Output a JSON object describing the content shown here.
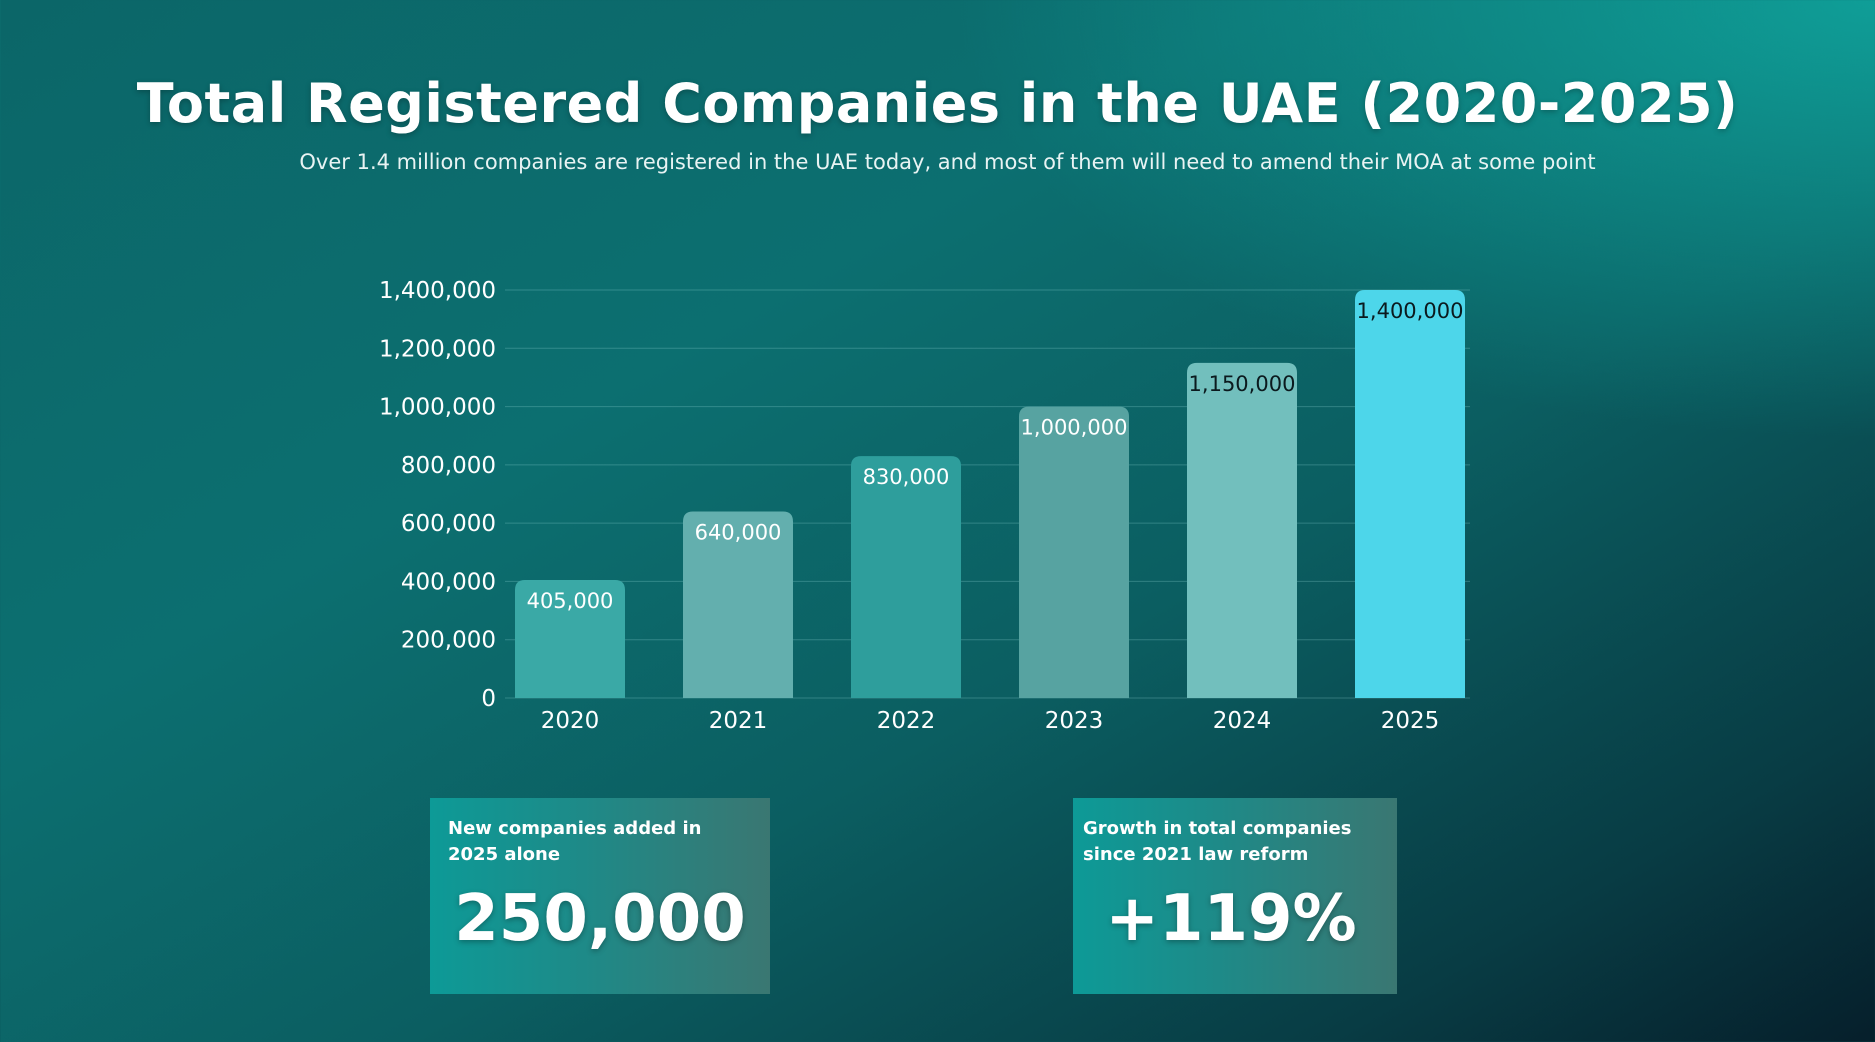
{
  "header": {
    "title": "Total Registered Companies in the UAE (2020-2025)",
    "subtitle": "Over 1.4 million companies are registered in the UAE today, and most of them will need to amend their MOA at some point"
  },
  "chart_data": {
    "type": "bar",
    "categories": [
      "2020",
      "2021",
      "2022",
      "2023",
      "2024",
      "2025"
    ],
    "values": [
      405000,
      640000,
      830000,
      1000000,
      1150000,
      1400000
    ],
    "value_labels": [
      "405,000",
      "640,000",
      "830,000",
      "1,000,000",
      "1,150,000",
      "1,400,000"
    ],
    "bar_colors": [
      "#3aa9a6",
      "#63afae",
      "#2e9e9c",
      "#57a3a1",
      "#72bfbd",
      "#4dd6ea"
    ],
    "value_label_colors": [
      "#ffffff",
      "#ffffff",
      "#ffffff",
      "#ffffff",
      "#0b1a1e",
      "#0b1a1e"
    ],
    "ylim": [
      0,
      1400000
    ],
    "yticks": [
      0,
      200000,
      400000,
      600000,
      800000,
      1000000,
      1200000,
      1400000
    ],
    "ytick_labels": [
      "0",
      "200,000",
      "400,000",
      "600,000",
      "800,000",
      "1,000,000",
      "1,200,000",
      "1,400,000"
    ],
    "grid": true,
    "title": "",
    "xlabel": "",
    "ylabel": ""
  },
  "cards": {
    "left": {
      "label": "New companies added in 2025 alone",
      "value": "250,000"
    },
    "right": {
      "label": "Growth in total companies since 2021 law reform",
      "value": "+119%"
    }
  }
}
